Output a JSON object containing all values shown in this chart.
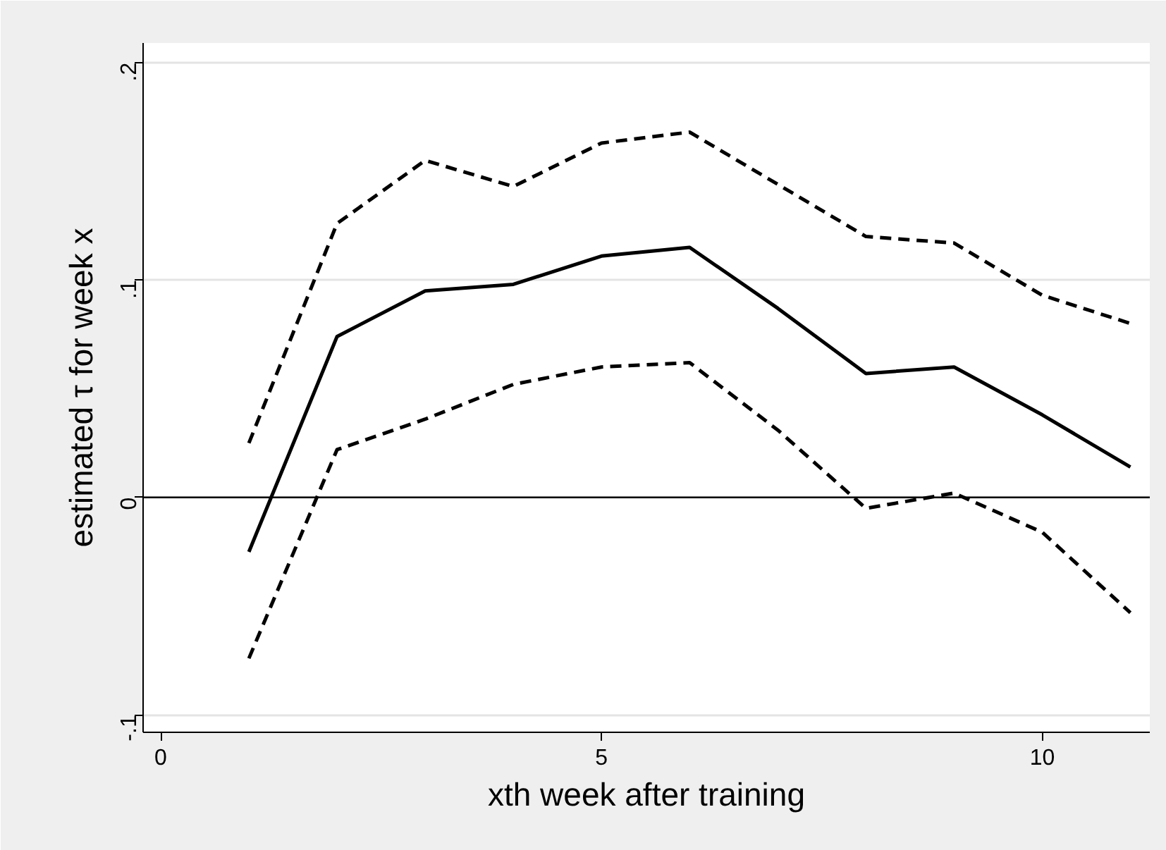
{
  "chart_data": {
    "type": "line",
    "xlabel": "xth week after training",
    "ylabel": "estimated τ for week x",
    "x": [
      1,
      2,
      3,
      4,
      5,
      6,
      7,
      8,
      9,
      10,
      11
    ],
    "series": [
      {
        "color": "#000000",
        "line_style": "solid",
        "values": [
          -0.025,
          0.074,
          0.095,
          0.098,
          0.111,
          0.115,
          0.087,
          0.057,
          0.06,
          0.038,
          0.014
        ]
      },
      {
        "color": "#000000",
        "line_style": "dashed",
        "values": [
          0.025,
          0.126,
          0.155,
          0.143,
          0.163,
          0.168,
          0.144,
          0.12,
          0.117,
          0.093,
          0.08
        ]
      },
      {
        "color": "#000000",
        "line_style": "dashed",
        "values": [
          -0.074,
          0.022,
          0.036,
          0.052,
          0.06,
          0.062,
          0.031,
          -0.005,
          0.002,
          -0.016,
          -0.053
        ]
      }
    ],
    "xlim": [
      -0.2,
      11.22
    ],
    "ylim": [
      -0.108,
      0.209
    ],
    "xticks": [
      0,
      5,
      10
    ],
    "yticks": [
      {
        "value": -0.1,
        "label": "-.1"
      },
      0,
      {
        "value": 0.1,
        "label": ".1"
      },
      {
        "value": 0.2,
        "label": ".2"
      }
    ],
    "ref_lines": [
      {
        "axis": "y",
        "value": 0,
        "color": "#000000"
      }
    ],
    "grid": "y",
    "marker": "none"
  }
}
